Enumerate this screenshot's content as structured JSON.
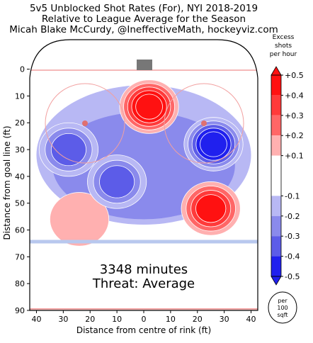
{
  "chart_data": {
    "type": "heatmap",
    "title_lines": [
      "5v5 Unblocked Shot Rates (For), NYI 2018-2019",
      "Relative to League Average for the Season",
      "Micah Blake McCurdy, @IneffectiveMath, hockeyviz.com"
    ],
    "xlabel": "Distance from centre of rink (ft)",
    "ylabel": "Distance from goal line (ft)",
    "xlim": [
      42.5,
      -42.5
    ],
    "ylim": [
      -11,
      90
    ],
    "x_ticks": [
      40,
      30,
      20,
      10,
      0,
      10,
      20,
      30,
      40
    ],
    "y_ticks": [
      0,
      10,
      20,
      30,
      40,
      50,
      60,
      70,
      80,
      90
    ],
    "annotation": {
      "minutes": "3348 minutes",
      "threat": "Threat: Average"
    },
    "colorbar": {
      "title_lines": [
        "Excess",
        "shots",
        "per hour"
      ],
      "ticks": [
        "+0.5",
        "+0.4",
        "+0.3",
        "+0.2",
        "+0.1",
        "-0.1",
        "-0.2",
        "-0.3",
        "-0.4",
        "-0.5"
      ],
      "levels": [
        {
          "from": 0.4,
          "to": 0.5,
          "color": "#ff1111"
        },
        {
          "from": 0.3,
          "to": 0.4,
          "color": "#ff3a3a"
        },
        {
          "from": 0.2,
          "to": 0.3,
          "color": "#ff6666"
        },
        {
          "from": 0.1,
          "to": 0.2,
          "color": "#ffb0b0"
        },
        {
          "from": -0.1,
          "to": 0.1,
          "color": "#ffffff"
        },
        {
          "from": -0.2,
          "to": -0.1,
          "color": "#b8b8f4"
        },
        {
          "from": -0.3,
          "to": -0.2,
          "color": "#8a8aec"
        },
        {
          "from": -0.4,
          "to": -0.3,
          "color": "#5c5ce8"
        },
        {
          "from": -0.5,
          "to": -0.4,
          "color": "#2020ee"
        }
      ]
    },
    "unit_badge": [
      "per",
      "100",
      "sqft"
    ],
    "hotspots": [
      {
        "x": -2,
        "y": 14,
        "peak": 0.5,
        "sign": "positive"
      },
      {
        "x": -25,
        "y": 52,
        "peak": 0.4,
        "sign": "positive"
      },
      {
        "x": 24,
        "y": 56,
        "peak": 0.15,
        "sign": "positive"
      },
      {
        "x": -26,
        "y": 28,
        "peak": -0.5,
        "sign": "negative"
      },
      {
        "x": 28,
        "y": 30,
        "peak": -0.35,
        "sign": "negative"
      },
      {
        "x": 10,
        "y": 42,
        "peak": -0.25,
        "sign": "negative"
      }
    ]
  }
}
